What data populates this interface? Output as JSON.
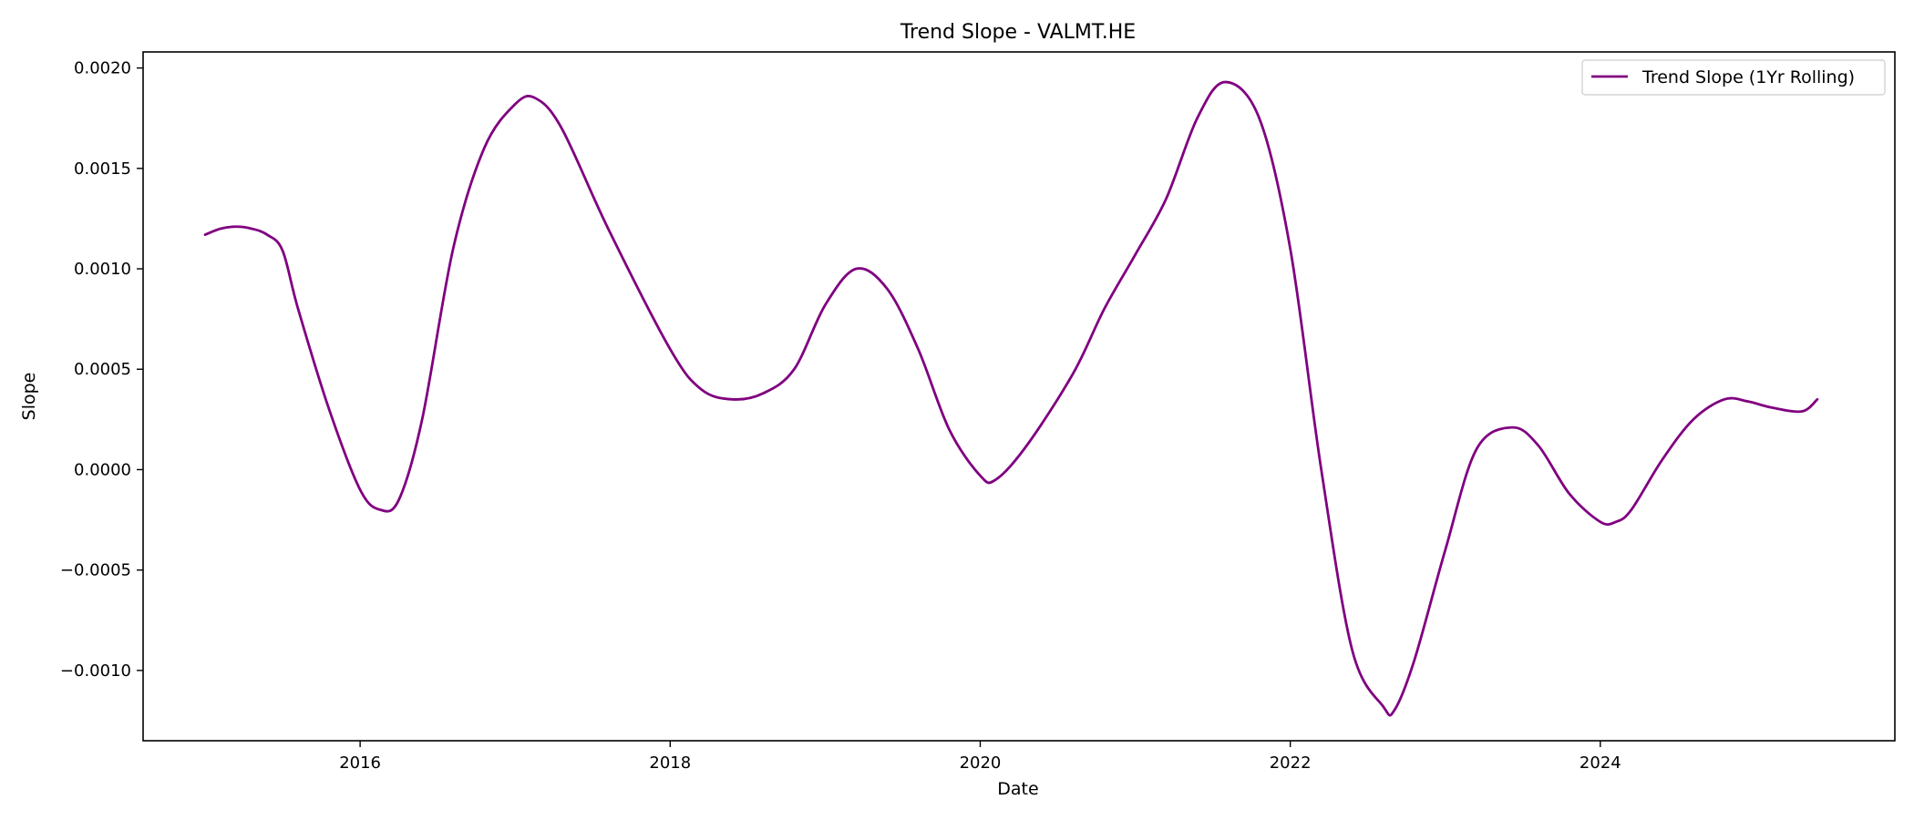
{
  "chart_data": {
    "type": "line",
    "title": "Trend Slope - VALMT.HE",
    "xlabel": "Date",
    "ylabel": "Slope",
    "xlim": [
      2014.6,
      2025.9
    ],
    "ylim": [
      -0.00135,
      0.00208
    ],
    "x_ticks": [
      2016,
      2018,
      2020,
      2022,
      2024
    ],
    "x_tick_labels": [
      "2016",
      "2018",
      "2020",
      "2022",
      "2024"
    ],
    "y_ticks": [
      -0.001,
      -0.0005,
      0.0,
      0.0005,
      0.001,
      0.0015,
      0.002
    ],
    "y_tick_labels": [
      "−0.0010",
      "−0.0005",
      "0.0000",
      "0.0005",
      "0.0010",
      "0.0015",
      "0.0020"
    ],
    "grid": false,
    "legend": {
      "position": "top-right"
    },
    "series": [
      {
        "name": "Trend Slope (1Yr Rolling)",
        "color": "#800080",
        "x": [
          2015.0,
          2015.1,
          2015.2,
          2015.3,
          2015.4,
          2015.5,
          2015.6,
          2015.8,
          2016.0,
          2016.13,
          2016.25,
          2016.4,
          2016.6,
          2016.8,
          2017.0,
          2017.13,
          2017.3,
          2017.6,
          2018.0,
          2018.2,
          2018.4,
          2018.6,
          2018.8,
          2019.0,
          2019.2,
          2019.4,
          2019.6,
          2019.8,
          2020.0,
          2020.1,
          2020.3,
          2020.6,
          2020.8,
          2021.0,
          2021.2,
          2021.4,
          2021.58,
          2021.8,
          2022.0,
          2022.2,
          2022.4,
          2022.6,
          2022.67,
          2022.8,
          2023.0,
          2023.2,
          2023.43,
          2023.6,
          2023.8,
          2024.0,
          2024.1,
          2024.2,
          2024.4,
          2024.6,
          2024.8,
          2024.95,
          2025.1,
          2025.3,
          2025.4
        ],
        "y": [
          0.00117,
          0.0012,
          0.00121,
          0.0012,
          0.00117,
          0.00109,
          0.0008,
          0.0003,
          -0.0001,
          -0.0002,
          -0.00015,
          0.00025,
          0.0011,
          0.0016,
          0.00182,
          0.00185,
          0.0017,
          0.0012,
          0.0006,
          0.0004,
          0.00035,
          0.00038,
          0.0005,
          0.00082,
          0.001,
          0.0009,
          0.0006,
          0.0002,
          -3e-05,
          -5e-05,
          0.00012,
          0.00048,
          0.0008,
          0.00107,
          0.00135,
          0.00175,
          0.00193,
          0.00175,
          0.0011,
          0.0,
          -0.0009,
          -0.00118,
          -0.0012,
          -0.00095,
          -0.0004,
          0.0001,
          0.00021,
          0.00012,
          -0.00012,
          -0.00026,
          -0.00026,
          -0.0002,
          5e-05,
          0.00025,
          0.00035,
          0.00034,
          0.00031,
          0.00029,
          0.00035
        ]
      }
    ]
  }
}
